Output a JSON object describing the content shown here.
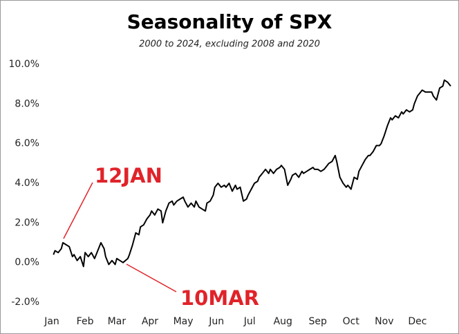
{
  "chart_data": {
    "type": "line",
    "title": "Seasonality of SPX",
    "subtitle": "2000 to 2024, excluding 2008 and 2020",
    "annotations": [
      "12JAN",
      "10MAR"
    ],
    "x": [
      1,
      2,
      4,
      6,
      7,
      9,
      11,
      13,
      14,
      16,
      18,
      20,
      21,
      23,
      25,
      27,
      28,
      31,
      33,
      34,
      36,
      38,
      40,
      41,
      43,
      45,
      48,
      49,
      51,
      53,
      55,
      56,
      58,
      60,
      62,
      63,
      65,
      67,
      69,
      70,
      72,
      74,
      76,
      77,
      79,
      81,
      83,
      84,
      86,
      88,
      90,
      91,
      93,
      95,
      97,
      98,
      100,
      102,
      103,
      105,
      107,
      109,
      110,
      112,
      114,
      116,
      117,
      119,
      121,
      123,
      124,
      126,
      128,
      130,
      131,
      133,
      135,
      137,
      138,
      140,
      142,
      144,
      145,
      147,
      149,
      151,
      152,
      154,
      156,
      158,
      159,
      161,
      163,
      165,
      166,
      168,
      170,
      172,
      173,
      175,
      177,
      179,
      180,
      182,
      184,
      186,
      187,
      189,
      191,
      193,
      194,
      196,
      198,
      200,
      201,
      203,
      205,
      207,
      208,
      210,
      212,
      214,
      215,
      217,
      219,
      221,
      222,
      224,
      226,
      228,
      229,
      231,
      233,
      234,
      236,
      238,
      240,
      241,
      243,
      245,
      247,
      248,
      250,
      252
    ],
    "series": [
      {
        "name": "SPX",
        "color": "#000000",
        "values": [
          0.4,
          0.6,
          0.5,
          0.7,
          1.0,
          0.9,
          0.8,
          0.3,
          0.4,
          0.1,
          0.3,
          -0.2,
          0.5,
          0.3,
          0.5,
          0.2,
          0.4,
          1.0,
          0.7,
          0.3,
          -0.1,
          0.1,
          -0.1,
          0.2,
          0.1,
          0.0,
          0.2,
          0.4,
          0.9,
          1.5,
          1.4,
          1.8,
          1.9,
          2.2,
          2.4,
          2.6,
          2.4,
          2.7,
          2.6,
          2.0,
          2.6,
          3.0,
          3.1,
          2.9,
          3.1,
          3.2,
          3.3,
          3.1,
          2.8,
          3.0,
          2.8,
          3.1,
          2.8,
          2.7,
          2.6,
          3.0,
          3.1,
          3.4,
          3.8,
          4.0,
          3.8,
          3.9,
          3.8,
          4.0,
          3.6,
          3.9,
          3.7,
          3.8,
          3.1,
          3.2,
          3.4,
          3.7,
          4.0,
          4.1,
          4.3,
          4.5,
          4.7,
          4.5,
          4.7,
          4.5,
          4.7,
          4.8,
          4.9,
          4.7,
          3.9,
          4.2,
          4.4,
          4.5,
          4.3,
          4.6,
          4.5,
          4.6,
          4.7,
          4.8,
          4.7,
          4.7,
          4.6,
          4.7,
          4.8,
          5.0,
          5.1,
          5.4,
          5.1,
          4.3,
          4.0,
          3.8,
          3.9,
          3.7,
          4.3,
          4.2,
          4.6,
          4.9,
          5.2,
          5.4,
          5.4,
          5.6,
          5.9,
          5.9,
          6.0,
          6.4,
          6.9,
          7.3,
          7.2,
          7.4,
          7.3,
          7.6,
          7.5,
          7.7,
          7.6,
          7.7,
          8.0,
          8.4,
          8.6,
          8.7,
          8.6,
          8.6,
          8.6,
          8.4,
          8.2,
          8.8,
          8.9,
          9.2,
          9.1,
          8.9
        ]
      }
    ],
    "xlim": [
      0,
      252
    ],
    "xticks": [
      {
        "value": 0,
        "label": "Jan"
      },
      {
        "value": 21,
        "label": "Feb"
      },
      {
        "value": 41,
        "label": "Mar"
      },
      {
        "value": 62,
        "label": "Apr"
      },
      {
        "value": 83,
        "label": "May"
      },
      {
        "value": 104,
        "label": "Jun"
      },
      {
        "value": 125,
        "label": "Jul"
      },
      {
        "value": 146,
        "label": "Aug"
      },
      {
        "value": 168,
        "label": "Sep"
      },
      {
        "value": 189,
        "label": "Oct"
      },
      {
        "value": 210,
        "label": "Nov"
      },
      {
        "value": 231,
        "label": "Dec"
      }
    ],
    "ylim": [
      -2,
      10
    ],
    "yticks": [
      {
        "value": -2,
        "label": "-2.0%"
      },
      {
        "value": 0,
        "label": "0.0%"
      },
      {
        "value": 2,
        "label": "2.0%"
      },
      {
        "value": 4,
        "label": "4.0%"
      },
      {
        "value": 6,
        "label": "6.0%"
      },
      {
        "value": 8,
        "label": "8.0%"
      },
      {
        "value": 10,
        "label": "10.0%"
      }
    ],
    "grid": false
  }
}
